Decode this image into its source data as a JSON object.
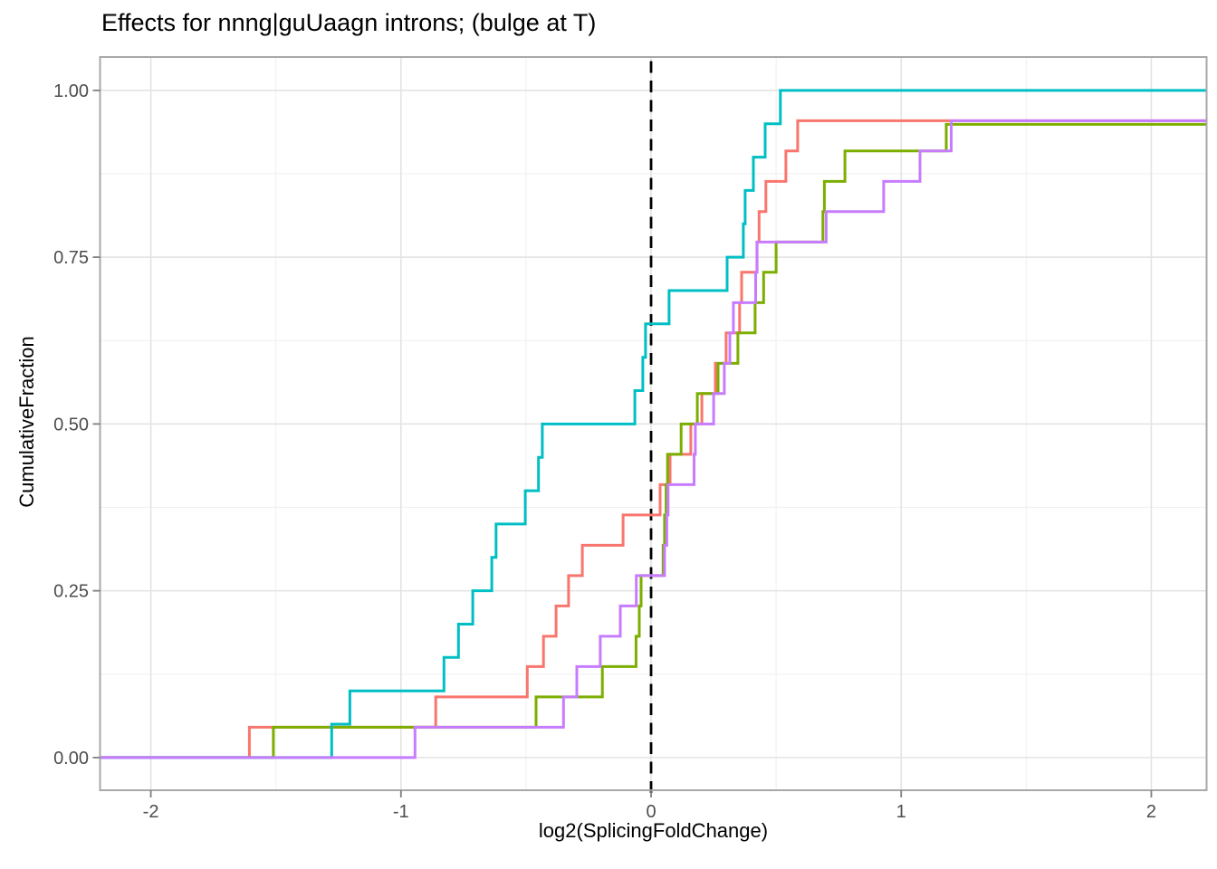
{
  "chart_data": {
    "type": "line",
    "subtype": "step-ecdf",
    "title": "Effects for nnng|guUaagn introns; (bulge at T)",
    "xlabel": "log2(SplicingFoldChange)",
    "ylabel": "CumulativeFraction",
    "xlim": [
      -2.203,
      2.221
    ],
    "ylim": [
      -0.049,
      1.05
    ],
    "grid": true,
    "legend": "none",
    "x_ticks": [
      {
        "value": -2,
        "label": "-2"
      },
      {
        "value": -1,
        "label": "-1"
      },
      {
        "value": 0,
        "label": "0"
      },
      {
        "value": 1,
        "label": "1"
      },
      {
        "value": 2,
        "label": "2"
      }
    ],
    "y_ticks": [
      {
        "value": 0,
        "label": "0.00"
      },
      {
        "value": 0.25,
        "label": "0.25"
      },
      {
        "value": 0.5,
        "label": "0.50"
      },
      {
        "value": 0.75,
        "label": "0.75"
      },
      {
        "value": 1,
        "label": "1.00"
      }
    ],
    "x_minor": [
      -1.5,
      -0.5,
      0.5,
      1.5
    ],
    "y_minor": [
      0.125,
      0.375,
      0.625,
      0.875
    ],
    "vline": {
      "x": 0,
      "style": "dashed",
      "color": "#000000"
    },
    "series": [
      {
        "name": "salmon",
        "color": "#F8766D",
        "start_level": 0,
        "x": [
          -1.606,
          -0.861,
          -0.495,
          -0.43,
          -0.38,
          -0.33,
          -0.275,
          -0.112,
          0.036,
          0.076,
          0.159,
          0.203,
          0.257,
          0.3,
          0.354,
          0.362,
          0.423,
          0.432,
          0.459,
          0.539,
          0.586
        ],
        "y": [
          0.0455,
          0.0909,
          0.1364,
          0.1818,
          0.2273,
          0.2727,
          0.3182,
          0.3636,
          0.4091,
          0.4545,
          0.5,
          0.5455,
          0.5909,
          0.6364,
          0.6818,
          0.7273,
          0.7727,
          0.8182,
          0.8636,
          0.9091,
          0.9545
        ]
      },
      {
        "name": "olive-green",
        "color": "#7CAE00",
        "start_level": 0,
        "x": [
          -1.51,
          -0.46,
          -0.195,
          -0.06,
          -0.047,
          -0.04,
          0.048,
          0.054,
          0.06,
          0.066,
          0.12,
          0.185,
          0.268,
          0.347,
          0.416,
          0.45,
          0.5,
          0.687,
          0.693,
          0.775,
          1.18
        ],
        "y": [
          0.0455,
          0.0909,
          0.1364,
          0.1818,
          0.2273,
          0.2727,
          0.3182,
          0.3636,
          0.4091,
          0.4545,
          0.5,
          0.5455,
          0.5909,
          0.6364,
          0.6818,
          0.7273,
          0.7727,
          0.8182,
          0.8636,
          0.9091,
          0.949
        ]
      },
      {
        "name": "teal",
        "color": "#00BFC4",
        "start_level": 0,
        "x": [
          -1.277,
          -1.204,
          -0.828,
          -0.77,
          -0.713,
          -0.637,
          -0.62,
          -0.503,
          -0.45,
          -0.435,
          -0.065,
          -0.033,
          -0.022,
          0.072,
          0.304,
          0.369,
          0.376,
          0.409,
          0.456,
          0.517
        ],
        "y": [
          0.05,
          0.1,
          0.15,
          0.2,
          0.25,
          0.3,
          0.35,
          0.4,
          0.45,
          0.5,
          0.55,
          0.6,
          0.65,
          0.7,
          0.75,
          0.8,
          0.85,
          0.9,
          0.95,
          1.0
        ]
      },
      {
        "name": "purple",
        "color": "#C77CFF",
        "start_level": 0,
        "x": [
          -0.944,
          -0.35,
          -0.297,
          -0.203,
          -0.123,
          -0.059,
          0.054,
          0.063,
          0.068,
          0.172,
          0.177,
          0.25,
          0.293,
          0.315,
          0.329,
          0.418,
          0.424,
          0.7,
          0.93,
          1.075,
          1.2
        ],
        "y": [
          0.0455,
          0.0909,
          0.1364,
          0.1818,
          0.2273,
          0.2727,
          0.3182,
          0.3636,
          0.4091,
          0.4545,
          0.5,
          0.5455,
          0.5909,
          0.6364,
          0.6818,
          0.7273,
          0.7727,
          0.8182,
          0.8636,
          0.9091,
          0.9545
        ]
      }
    ]
  }
}
